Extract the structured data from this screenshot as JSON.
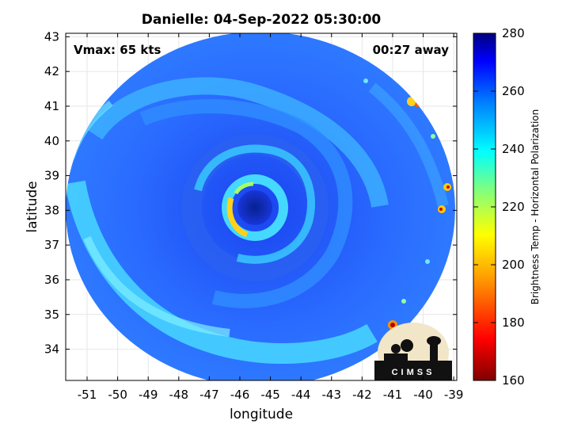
{
  "title": "Danielle: 04-Sep-2022 05:30:00",
  "vmax_text": "Vmax: 65 kts",
  "time_text": "00:27 away",
  "xlabel": "longitude",
  "ylabel": "latitude",
  "colorbar_label": "Brightness Temp - Horizontal Polarization",
  "x_ticks": [
    "-51",
    "-50",
    "-49",
    "-48",
    "-47",
    "-46",
    "-45",
    "-44",
    "-43",
    "-42",
    "-41",
    "-40",
    "-39"
  ],
  "y_ticks": [
    "34",
    "35",
    "36",
    "37",
    "38",
    "39",
    "40",
    "41",
    "42",
    "43"
  ],
  "colorbar_ticks": [
    "280",
    "260",
    "240",
    "220",
    "200",
    "180",
    "160"
  ],
  "logo_text": "CIMSS",
  "map": {
    "xlim": [
      -51.7,
      -38.9
    ],
    "ylim": [
      33.1,
      43.1
    ],
    "colorbar_range": [
      160,
      280
    ],
    "colormap": "jet",
    "storm_center": {
      "lon": -45.5,
      "lat": 38.0
    },
    "colors": {
      "background_swath": "#1f5fff",
      "band": "#45e0ff",
      "eyewall": "#ffd21a",
      "eye": "#0b2bb0"
    }
  }
}
